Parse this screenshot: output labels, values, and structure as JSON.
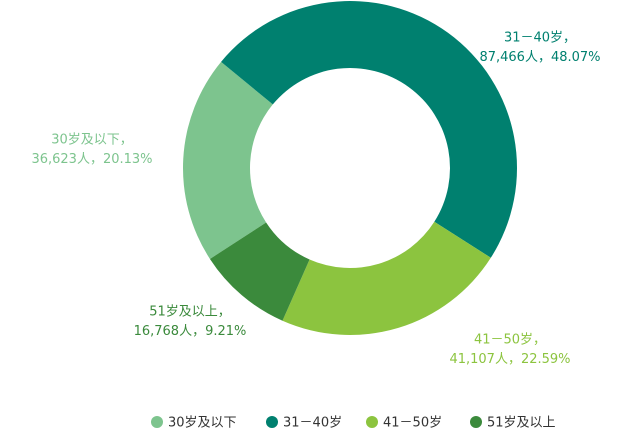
{
  "chart_data": {
    "type": "pie",
    "donut": true,
    "categories": [
      "30岁及以下",
      "31－40岁",
      "41－50岁",
      "51岁及以上"
    ],
    "colors": [
      "#7dc48e",
      "#00806f",
      "#8cc43f",
      "#3b8a3c"
    ],
    "values": [
      20.13,
      48.07,
      22.59,
      9.21
    ],
    "value_labels": [
      "20.13%",
      "48.07%",
      "22.59%",
      "9.21%"
    ],
    "counts": [
      36623,
      87466,
      41107,
      16768
    ],
    "count_labels": [
      "36,623人，",
      "87,466人，",
      "41,107人，",
      "16,768人，"
    ],
    "label_titles": [
      "30岁及以下，",
      "31－40岁，",
      "41－50岁，",
      "51岁及以上，"
    ],
    "legend": "bottom"
  }
}
